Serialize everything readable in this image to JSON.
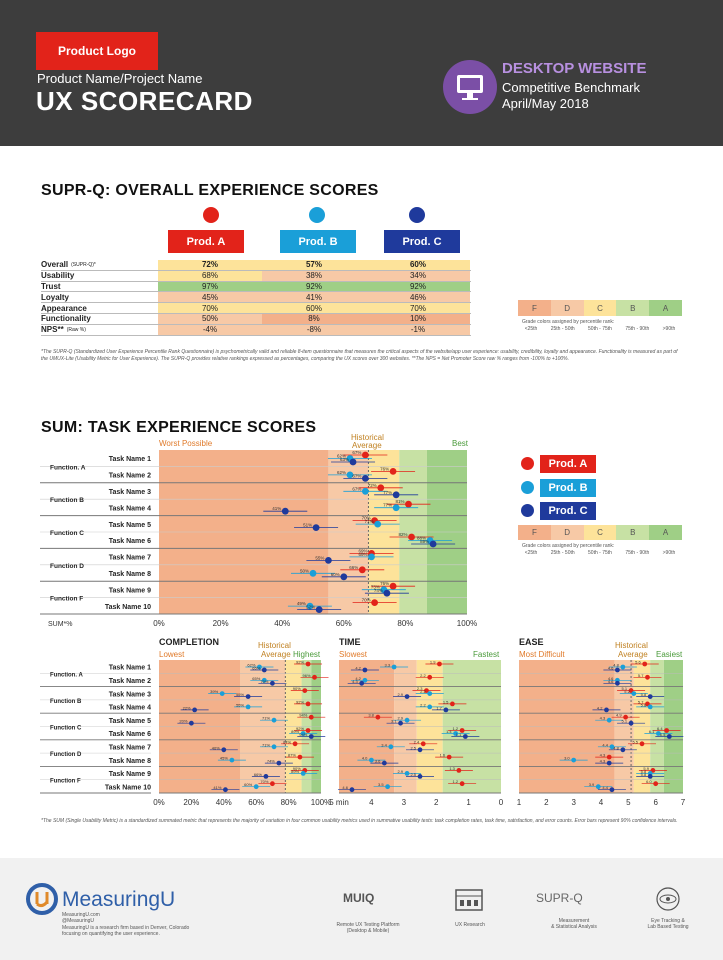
{
  "header": {
    "logo": "Product Logo",
    "project": "Product Name/Project Name",
    "title": "UX SCORECARD",
    "platform": "DESKTOP WEBSITE",
    "subtitle": "Competitive  Benchmark",
    "date": "April/May 2018"
  },
  "colors": {
    "prodA": "#e2231a",
    "prodB": "#1a9fd8",
    "prodC": "#1f3a9c",
    "gradeF": "#f3b08a",
    "gradeD": "#f7c9a6",
    "gradeC": "#fde39a",
    "gradeB": "#c7e1a4",
    "gradeA": "#9fcf86"
  },
  "suprq": {
    "title": "SUPR-Q: OVERALL EXPERIENCE SCORES",
    "products": [
      "Prod. A",
      "Prod. B",
      "Prod. C"
    ],
    "rows": [
      {
        "label": "Overall",
        "sub": "(SUPR-Q)*",
        "values": [
          "72%",
          "57%",
          "60%"
        ]
      },
      {
        "label": "Usability",
        "sub": "",
        "values": [
          "68%",
          "38%",
          "34%"
        ]
      },
      {
        "label": "Trust",
        "sub": "",
        "values": [
          "97%",
          "92%",
          "92%"
        ]
      },
      {
        "label": "Loyalty",
        "sub": "",
        "values": [
          "45%",
          "41%",
          "46%"
        ]
      },
      {
        "label": "Appearance",
        "sub": "",
        "values": [
          "70%",
          "60%",
          "70%"
        ]
      },
      {
        "label": "Functionality",
        "sub": "",
        "values": [
          "50%",
          "8%",
          "10%"
        ]
      },
      {
        "label": "NPS**",
        "sub": "(Raw %)",
        "values": [
          "-4%",
          "-8%",
          "-1%"
        ]
      }
    ],
    "footnote": "*The SUPR-Q (Standardized User Experience Percentile Rank Questionnaire) is psychometrically valid and reliable 8-item questionnaire that measures the critical aspects of the website/app user experience: usability, credibility, loyalty and appearance. Functionality is measured as part of the UMUX-Lite (Usability Metric for User Experience). The SUPR-Q provides relative rankings expressed as percentages, comparing the UX scores over 300 websites. **The NPS = Net Promoter Score raw % ranges from -100% to +100%."
  },
  "grades": {
    "letters": [
      "F",
      "D",
      "C",
      "B",
      "A"
    ],
    "caption": "Grade colors assigned by percentile rank:",
    "ranges": [
      "<25th",
      "25th - 50th",
      "50th - 75th",
      "75th - 90th",
      ">90th"
    ]
  },
  "sum": {
    "title": "SUM: TASK EXPERIENCE SCORES",
    "worst": "Worst Possible",
    "hist": "Historical",
    "avg": "Average",
    "best": "Best",
    "axis_label": "SUM*%",
    "functions": [
      "Function. A",
      "Function B",
      "Function C",
      "Function D",
      "Function F"
    ],
    "tasks": [
      "Task Name 1",
      "Task Name 2",
      "Task Name 3",
      "Task Name 4",
      "Task Name 5",
      "Task Name 6",
      "Task Name 7",
      "Task Name 8",
      "Task Name 9",
      "Task Name 10"
    ],
    "ticks": [
      "0%",
      "20%",
      "40%",
      "60%",
      "80%",
      "100%"
    ],
    "footnote": "*The SUM (Single Usability Metric) is a standardized summated metric that represents the majority of variation in four common usability metrics used in summative usability tests: task completion rates, task time, satisfaction, and error counts. Error bars represent 90% confidence intervals."
  },
  "chart_data": [
    {
      "type": "scatter",
      "title": "SUM: TASK EXPERIENCE SCORES",
      "xlabel": "SUM*%",
      "categories": [
        "Task Name 1",
        "Task Name 2",
        "Task Name 3",
        "Task Name 4",
        "Task Name 5",
        "Task Name 6",
        "Task Name 7",
        "Task Name 8",
        "Task Name 9",
        "Task Name 10"
      ],
      "xlim": [
        0,
        100
      ],
      "series": [
        {
          "name": "Prod. A",
          "values": [
            67,
            76,
            72,
            81,
            70,
            82,
            69,
            66,
            76,
            70
          ]
        },
        {
          "name": "Prod. B",
          "values": [
            62,
            62,
            67,
            77,
            71,
            88,
            69,
            50,
            73,
            49
          ]
        },
        {
          "name": "Prod. C",
          "values": [
            63,
            67,
            77,
            41,
            51,
            89,
            55,
            60,
            74,
            52
          ]
        }
      ]
    },
    {
      "type": "scatter",
      "title": "COMPLETION",
      "categories": [
        "Task Name 1",
        "Task Name 2",
        "Task Name 3",
        "Task Name 4",
        "Task Name 5",
        "Task Name 6",
        "Task Name 7",
        "Task Name 8",
        "Task Name 9",
        "Task Name 10"
      ],
      "xlim": [
        0,
        100
      ],
      "series": [
        {
          "name": "Prod. A",
          "values": [
            92,
            96,
            90,
            92,
            94,
            92,
            84,
            87,
            90,
            70
          ]
        },
        {
          "name": "Prod. B",
          "values": [
            62,
            65,
            39,
            55,
            71,
            89,
            71,
            45,
            89,
            60
          ]
        },
        {
          "name": "Prod. C",
          "values": [
            65,
            70,
            55,
            22,
            20,
            94,
            40,
            74,
            66,
            41
          ]
        }
      ]
    },
    {
      "type": "scatter",
      "title": "TIME",
      "categories": [
        "Task Name 1",
        "Task Name 2",
        "Task Name 3",
        "Task Name 4",
        "Task Name 5",
        "Task Name 6",
        "Task Name 7",
        "Task Name 8",
        "Task Name 9",
        "Task Name 10"
      ],
      "xlim": [
        5,
        0
      ],
      "series": [
        {
          "name": "Prod. A",
          "values": [
            1.9,
            2.2,
            2.3,
            1.5,
            3.8,
            1.2,
            2.4,
            1.6,
            1.3,
            1.2
          ]
        },
        {
          "name": "Prod. B",
          "values": [
            3.3,
            4.2,
            2.2,
            2.2,
            2.9,
            1.4,
            3.4,
            4.0,
            2.9,
            3.5
          ]
        },
        {
          "name": "Prod. C",
          "values": [
            4.2,
            4.3,
            2.9,
            1.7,
            3.1,
            1.1,
            2.5,
            3.6,
            2.5,
            4.6
          ]
        }
      ]
    },
    {
      "type": "scatter",
      "title": "EASE",
      "categories": [
        "Task Name 1",
        "Task Name 2",
        "Task Name 3",
        "Task Name 4",
        "Task Name 5",
        "Task Name 6",
        "Task Name 7",
        "Task Name 8",
        "Task Name 9",
        "Task Name 10"
      ],
      "xlim": [
        1,
        7
      ],
      "series": [
        {
          "name": "Prod. A",
          "values": [
            5.6,
            5.7,
            5.1,
            5.7,
            4.9,
            6.4,
            5.5,
            4.3,
            5.9,
            6.0
          ]
        },
        {
          "name": "Prod. B",
          "values": [
            4.8,
            4.6,
            5.2,
            5.8,
            4.3,
            6.1,
            4.4,
            3.0,
            5.8,
            3.9
          ]
        },
        {
          "name": "Prod. C",
          "values": [
            4.6,
            4.6,
            5.8,
            4.2,
            5.1,
            6.5,
            4.8,
            4.3,
            5.8,
            4.4
          ]
        }
      ]
    }
  ],
  "completion": {
    "title": "COMPLETION",
    "lowest": "Lowest",
    "hist": "Historical",
    "avg": "Average",
    "highest": "Highest",
    "ticks": [
      "0%",
      "20%",
      "40%",
      "60%",
      "80%",
      "100%"
    ]
  },
  "time": {
    "title": "TIME",
    "slowest": "Slowest",
    "fastest": "Fastest",
    "ticks": [
      "5 min",
      "4",
      "3",
      "2",
      "1",
      "0"
    ]
  },
  "ease": {
    "title": "EASE",
    "most": "Most Difficult",
    "hist": "Historical",
    "avg": "Average",
    "easiest": "Easiest",
    "ticks": [
      "1",
      "2",
      "3",
      "4",
      "5",
      "6",
      "7"
    ]
  },
  "footer": {
    "brand": "MeasuringU",
    "site": "MeasuringU.com",
    "handle": "@MeasuringU",
    "desc1": "MeasuringU is a research firm based in Denver, Colorado",
    "desc2": "focusing on quantifying the user experience.",
    "items": [
      {
        "logo": "MUIQ",
        "l1": "Remote UX Testing Platform",
        "l2": "(Desktop & Mobile)"
      },
      {
        "logo": "",
        "l1": "UX Research",
        "l2": ""
      },
      {
        "logo": "SUPR-Q",
        "l1": "Measurement",
        "l2": "& Statistical Analysis"
      },
      {
        "logo": "",
        "l1": "Eye Tracking &",
        "l2": "Lab Based Testing"
      }
    ]
  }
}
